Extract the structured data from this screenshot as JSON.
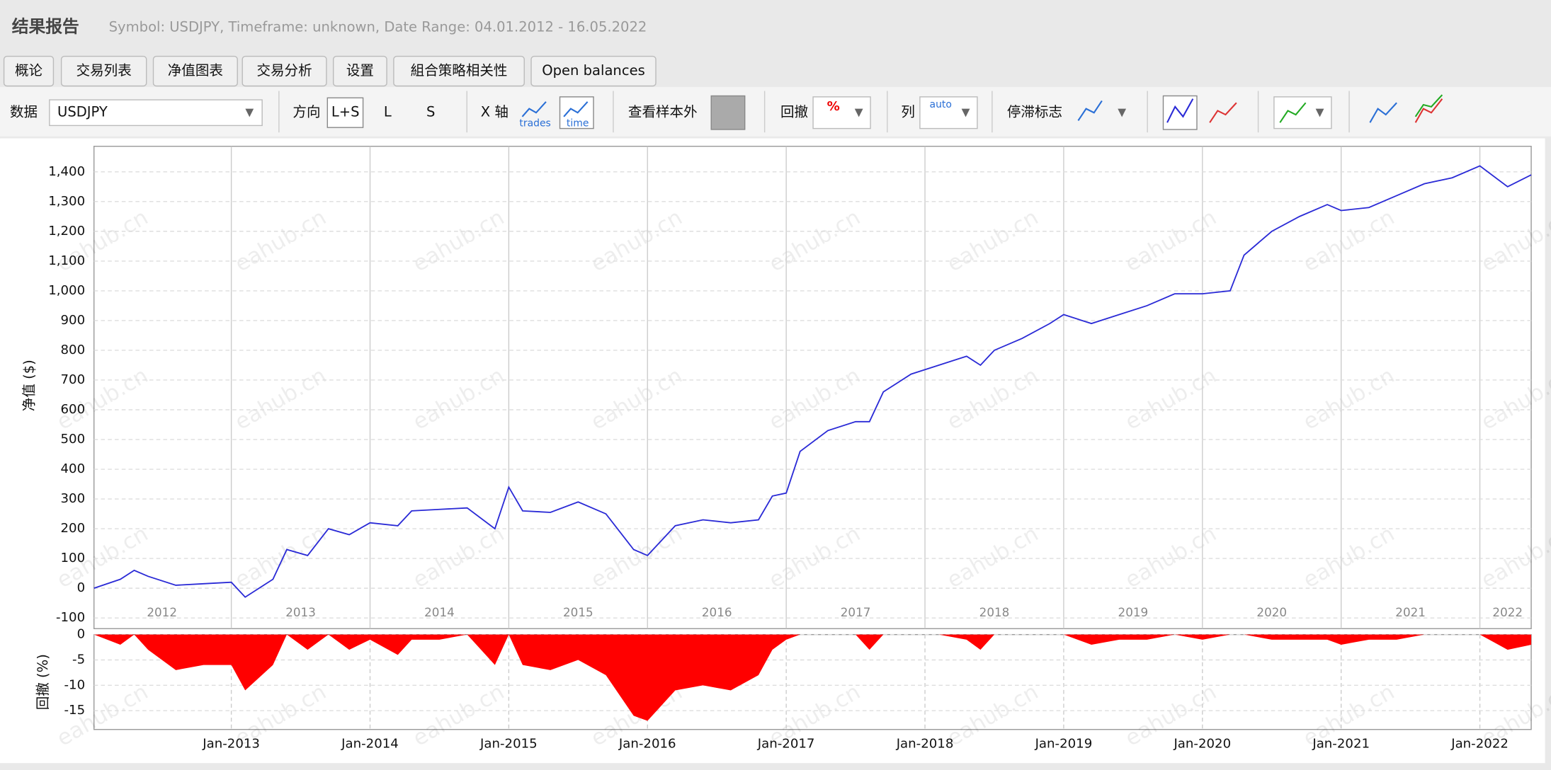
{
  "header": {
    "title": "结果报告",
    "subtitle": "Symbol: USDJPY, Timeframe: unknown, Date Range: 04.01.2012 - 16.05.2022"
  },
  "tabs": [
    "概论",
    "交易列表",
    "净值图表",
    "交易分析",
    "设置",
    "組合策略相关性",
    "Open balances"
  ],
  "toolbar": {
    "data_label": "数据",
    "symbol": "USDJPY",
    "direction_label": "方向",
    "direction_options": [
      "L+S",
      "L",
      "S"
    ],
    "x_axis_label": "X 轴",
    "x_axis_options": [
      "trades",
      "time"
    ],
    "out_of_sample_label": "查看样本外",
    "drawdown_label": "回撤",
    "drawdown_icon": "%",
    "columns_label": "列",
    "columns_icon": "auto",
    "stagnation_label": "停滞标志"
  },
  "watermark": "eahub.cn",
  "chart_data": [
    {
      "type": "line",
      "y_label": "净值 ($)",
      "grid": true,
      "x": [
        2012.01,
        2012.2,
        2012.3,
        2012.4,
        2012.6,
        2012.8,
        2013.0,
        2013.1,
        2013.3,
        2013.4,
        2013.55,
        2013.7,
        2013.85,
        2014.0,
        2014.2,
        2014.3,
        2014.5,
        2014.7,
        2014.9,
        2015.0,
        2015.1,
        2015.3,
        2015.5,
        2015.7,
        2015.9,
        2016.0,
        2016.2,
        2016.4,
        2016.6,
        2016.8,
        2016.9,
        2017.0,
        2017.1,
        2017.3,
        2017.5,
        2017.6,
        2017.7,
        2017.9,
        2018.1,
        2018.3,
        2018.4,
        2018.5,
        2018.7,
        2018.9,
        2019.0,
        2019.2,
        2019.4,
        2019.6,
        2019.8,
        2020.0,
        2020.2,
        2020.3,
        2020.5,
        2020.7,
        2020.9,
        2021.0,
        2021.2,
        2021.4,
        2021.6,
        2021.8,
        2022.0,
        2022.2,
        2022.37
      ],
      "series": [
        {
          "color": "#2a2ad6",
          "values": [
            0,
            30,
            60,
            40,
            10,
            15,
            20,
            -30,
            30,
            130,
            110,
            200,
            180,
            220,
            210,
            260,
            265,
            270,
            200,
            340,
            260,
            255,
            290,
            250,
            130,
            110,
            210,
            230,
            220,
            230,
            310,
            320,
            460,
            530,
            560,
            560,
            660,
            720,
            750,
            780,
            750,
            800,
            840,
            890,
            920,
            890,
            920,
            950,
            990,
            990,
            1000,
            1120,
            1200,
            1250,
            1290,
            1270,
            1280,
            1320,
            1360,
            1380,
            1420,
            1350,
            1390
          ]
        }
      ],
      "xlim": [
        2012.01,
        2022.37
      ],
      "xticks": [
        {
          "value": 2012.5,
          "label": "2012"
        },
        {
          "value": 2013.5,
          "label": "2013"
        },
        {
          "value": 2014.5,
          "label": "2014"
        },
        {
          "value": 2015.5,
          "label": "2015"
        },
        {
          "value": 2016.5,
          "label": "2016"
        },
        {
          "value": 2017.5,
          "label": "2017"
        },
        {
          "value": 2018.5,
          "label": "2018"
        },
        {
          "value": 2019.5,
          "label": "2019"
        },
        {
          "value": 2020.5,
          "label": "2020"
        },
        {
          "value": 2021.5,
          "label": "2021"
        },
        {
          "value": 2022.2,
          "label": "2022"
        }
      ],
      "ylim": [
        -136,
        1486
      ],
      "yticks": [
        -100,
        0,
        100,
        200,
        300,
        400,
        500,
        600,
        700,
        800,
        900,
        {
          "value": 1000,
          "label": "1,000"
        },
        {
          "value": 1100,
          "label": "1,100"
        },
        {
          "value": 1200,
          "label": "1,200"
        },
        {
          "value": 1300,
          "label": "1,300"
        },
        {
          "value": 1400,
          "label": "1,400"
        }
      ]
    },
    {
      "type": "area",
      "y_label": "回撤 (%)",
      "grid": true,
      "x": [
        2012.01,
        2012.2,
        2012.3,
        2012.4,
        2012.6,
        2012.8,
        2013.0,
        2013.1,
        2013.3,
        2013.4,
        2013.55,
        2013.7,
        2013.85,
        2014.0,
        2014.2,
        2014.3,
        2014.5,
        2014.7,
        2014.9,
        2015.0,
        2015.1,
        2015.3,
        2015.5,
        2015.7,
        2015.9,
        2016.0,
        2016.2,
        2016.4,
        2016.6,
        2016.8,
        2016.9,
        2017.0,
        2017.1,
        2017.3,
        2017.5,
        2017.6,
        2017.7,
        2017.9,
        2018.1,
        2018.3,
        2018.4,
        2018.5,
        2018.7,
        2018.9,
        2019.0,
        2019.2,
        2019.4,
        2019.6,
        2019.8,
        2020.0,
        2020.2,
        2020.3,
        2020.5,
        2020.7,
        2020.9,
        2021.0,
        2021.2,
        2021.4,
        2021.6,
        2021.8,
        2022.0,
        2022.2,
        2022.37
      ],
      "series": [
        {
          "color": "#ff0000",
          "values": [
            0,
            -2,
            0,
            -3,
            -7,
            -6,
            -6,
            -11,
            -6,
            0,
            -3,
            0,
            -3,
            -1,
            -4,
            -1,
            -1,
            0,
            -6,
            0,
            -6,
            -7,
            -5,
            -8,
            -16,
            -17,
            -11,
            -10,
            -11,
            -8,
            -3,
            -1,
            0,
            0,
            0,
            -3,
            0,
            0,
            0,
            -1,
            -3,
            0,
            0,
            0,
            0,
            -2,
            -1,
            -1,
            0,
            -1,
            0,
            0,
            -1,
            -1,
            -1,
            -2,
            -1,
            -1,
            0,
            0,
            0,
            -3,
            -2
          ]
        }
      ],
      "xlim": [
        2012.01,
        2022.37
      ],
      "xticks": [
        {
          "value": 2013,
          "label": "Jan-2013"
        },
        {
          "value": 2014,
          "label": "Jan-2014"
        },
        {
          "value": 2015,
          "label": "Jan-2015"
        },
        {
          "value": 2016,
          "label": "Jan-2016"
        },
        {
          "value": 2017,
          "label": "Jan-2017"
        },
        {
          "value": 2018,
          "label": "Jan-2018"
        },
        {
          "value": 2019,
          "label": "Jan-2019"
        },
        {
          "value": 2020,
          "label": "Jan-2020"
        },
        {
          "value": 2021,
          "label": "Jan-2021"
        },
        {
          "value": 2022,
          "label": "Jan-2022"
        }
      ],
      "ylim": [
        -18.7,
        0
      ],
      "yticks": [
        0,
        -5,
        -10,
        -15
      ]
    }
  ]
}
